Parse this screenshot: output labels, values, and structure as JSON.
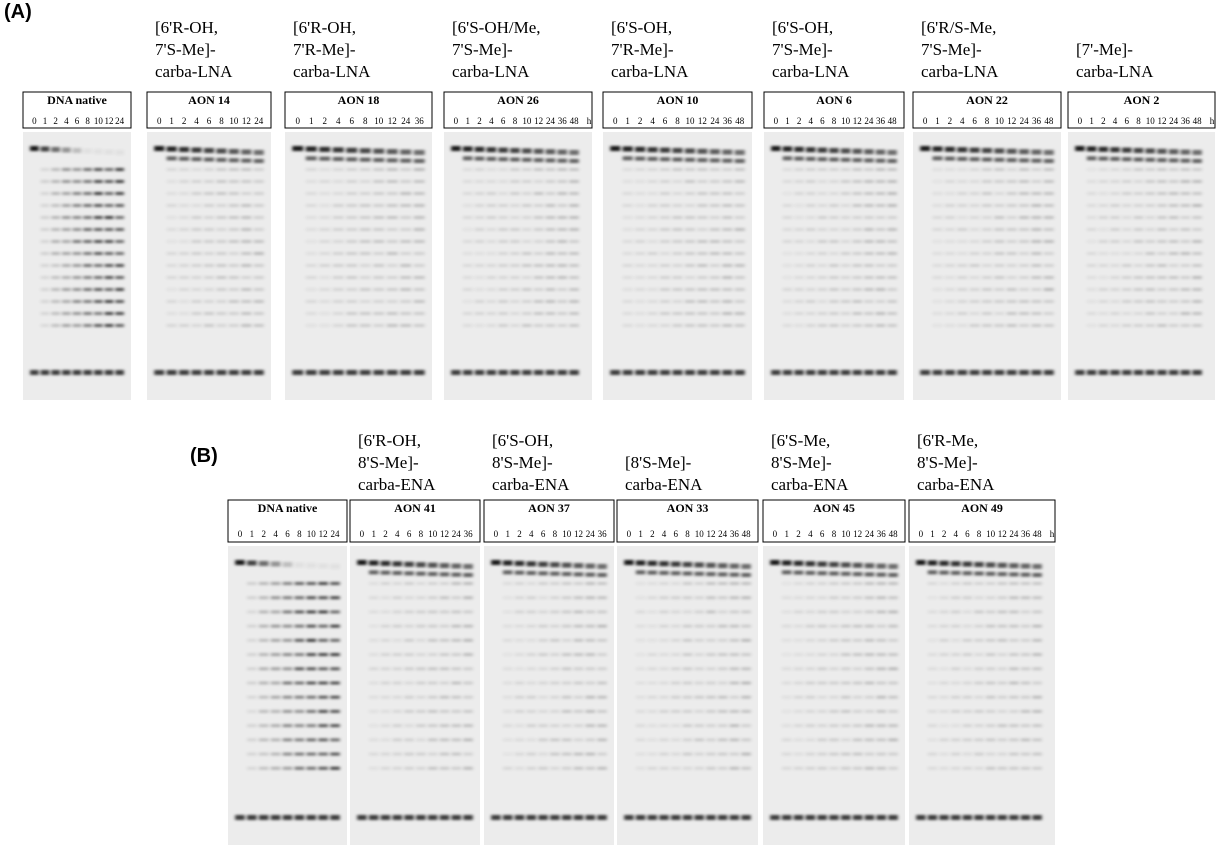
{
  "panels": [
    {
      "label": "(A)",
      "gels": [
        {
          "name": "DNA native",
          "lanes": [
            "0",
            "1",
            "2",
            "4",
            "6",
            "8",
            "10",
            "12",
            "24"
          ]
        },
        {
          "header": [
            "[6'R-OH,",
            "7'S-Me]-",
            "carba-LNA"
          ],
          "name": "AON 14",
          "lanes": [
            "0",
            "1",
            "2",
            "4",
            "6",
            "8",
            "10",
            "12",
            "24"
          ]
        },
        {
          "header": [
            "[6'R-OH,",
            "7'R-Me]-",
            "carba-LNA"
          ],
          "name": "AON 18",
          "lanes": [
            "0",
            "1",
            "2",
            "4",
            "6",
            "8",
            "10",
            "12",
            "24",
            "36"
          ]
        },
        {
          "header": [
            "[6'S-OH/Me,",
            "7'S-Me]-",
            "carba-LNA"
          ],
          "name": "AON 26",
          "lanes": [
            "0",
            "1",
            "2",
            "4",
            "6",
            "8",
            "10",
            "12",
            "24",
            "36",
            "48",
            "h"
          ]
        },
        {
          "header": [
            "[6'S-OH,",
            "7'R-Me]-",
            "carba-LNA"
          ],
          "name": "AON 10",
          "lanes": [
            "0",
            "1",
            "2",
            "4",
            "6",
            "8",
            "10",
            "12",
            "24",
            "36",
            "48"
          ]
        },
        {
          "header": [
            "[6'S-OH,",
            "7'S-Me]-",
            "carba-LNA"
          ],
          "name": "AON 6",
          "lanes": [
            "0",
            "1",
            "2",
            "4",
            "6",
            "8",
            "10",
            "12",
            "24",
            "36",
            "48"
          ]
        },
        {
          "header": [
            "[6'R/S-Me,",
            "7'S-Me]-",
            "carba-LNA"
          ],
          "name": "AON 22",
          "lanes": [
            "0",
            "1",
            "2",
            "4",
            "6",
            "8",
            "10",
            "12",
            "24",
            "36",
            "48"
          ]
        },
        {
          "header": [
            "[7'-Me]-",
            "carba-LNA"
          ],
          "name": "AON 2",
          "lanes": [
            "0",
            "1",
            "2",
            "4",
            "6",
            "8",
            "10",
            "12",
            "24",
            "36",
            "48",
            "h"
          ]
        }
      ]
    },
    {
      "label": "(B)",
      "gels": [
        {
          "name": "DNA native",
          "lanes": [
            "0",
            "1",
            "2",
            "4",
            "6",
            "8",
            "10",
            "12",
            "24"
          ]
        },
        {
          "header": [
            "[6'R-OH,",
            "8'S-Me]-",
            "carba-ENA"
          ],
          "name": "AON 41",
          "lanes": [
            "0",
            "1",
            "2",
            "4",
            "6",
            "8",
            "10",
            "12",
            "24",
            "36"
          ]
        },
        {
          "header": [
            "[6'S-OH,",
            "8'S-Me]-",
            "carba-ENA"
          ],
          "name": "AON 37",
          "lanes": [
            "0",
            "1",
            "2",
            "4",
            "6",
            "8",
            "10",
            "12",
            "24",
            "36"
          ]
        },
        {
          "header": [
            "[8'S-Me]-",
            "carba-ENA"
          ],
          "name": "AON 33",
          "lanes": [
            "0",
            "1",
            "2",
            "4",
            "6",
            "8",
            "10",
            "12",
            "24",
            "36",
            "48"
          ]
        },
        {
          "header": [
            "[6'S-Me,",
            "8'S-Me]-",
            "carba-ENA"
          ],
          "name": "AON 45",
          "lanes": [
            "0",
            "1",
            "2",
            "4",
            "6",
            "8",
            "10",
            "12",
            "24",
            "36",
            "48"
          ]
        },
        {
          "header": [
            "[6'R-Me,",
            "8'S-Me]-",
            "carba-ENA"
          ],
          "name": "AON 49",
          "lanes": [
            "0",
            "1",
            "2",
            "4",
            "6",
            "8",
            "10",
            "12",
            "24",
            "36",
            "48",
            "h"
          ]
        }
      ]
    }
  ]
}
